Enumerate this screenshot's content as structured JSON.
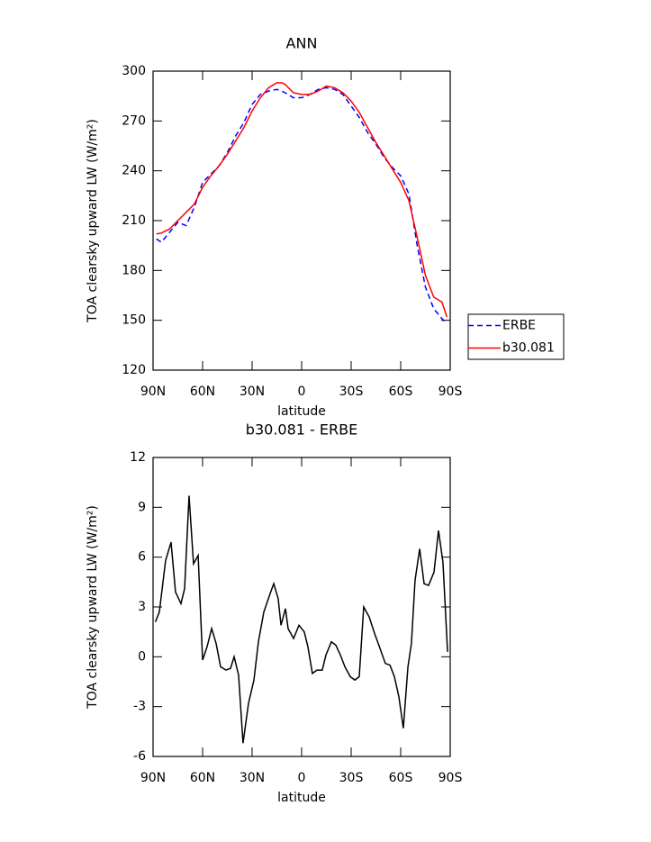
{
  "chart_data": [
    {
      "type": "line",
      "title": "ANN",
      "x_label": "latitude",
      "y_label": "TOA clearsky upward LW (W/m²)",
      "x": [
        88,
        85,
        80,
        75,
        70,
        65,
        60,
        55,
        50,
        45,
        40,
        35,
        30,
        25,
        20,
        15,
        12,
        10,
        5,
        0,
        -5,
        -10,
        -15,
        -20,
        -25,
        -30,
        -35,
        -40,
        -45,
        -50,
        -55,
        -60,
        -65,
        -70,
        -75,
        -80,
        -85,
        -88
      ],
      "series": [
        {
          "name": "ERBE",
          "color": "#0000ff",
          "dash": true,
          "values": [
            199,
            197,
            203,
            209,
            207,
            218,
            233,
            238,
            243,
            251,
            261,
            269,
            280,
            286,
            288,
            289,
            288,
            287,
            284,
            284,
            286,
            289,
            290,
            289,
            286,
            279,
            272,
            263,
            256,
            248,
            242,
            237,
            226,
            195,
            170,
            157,
            151,
            148
          ]
        },
        {
          "name": "b30.081",
          "color": "#ff0000",
          "dash": false,
          "values": [
            202,
            202.5,
            205,
            210,
            215,
            220,
            230,
            237,
            243,
            250,
            258,
            266,
            276,
            284,
            290,
            293,
            293,
            292,
            287,
            286,
            286,
            288,
            291,
            290,
            287,
            282,
            275,
            266,
            257,
            249,
            241,
            233,
            222,
            200,
            177,
            164,
            161,
            152
          ]
        }
      ],
      "xlim": [
        90,
        -90
      ],
      "xticks": [
        {
          "value": 90,
          "label": "90N"
        },
        {
          "value": 60,
          "label": "60N"
        },
        {
          "value": 30,
          "label": "30N"
        },
        0,
        {
          "value": -30,
          "label": "30S"
        },
        {
          "value": -60,
          "label": "60S"
        },
        {
          "value": -90,
          "label": "90S"
        }
      ],
      "ylim": [
        120,
        300
      ],
      "yticks": [
        120,
        150,
        180,
        210,
        240,
        270,
        300
      ],
      "legend": "right"
    },
    {
      "type": "line",
      "title": "b30.081 - ERBE",
      "x_label": "latitude",
      "y_label": "TOA clearsky upward LW (W/m²)",
      "x": [
        88.6,
        86.2,
        82.4,
        79.1,
        76.4,
        73.1,
        70.9,
        68.2,
        65.5,
        62.7,
        60.0,
        57.3,
        54.5,
        51.8,
        49.1,
        45.8,
        43.1,
        40.9,
        38.2,
        35.5,
        32.2,
        28.9,
        26.2,
        22.9,
        19.1,
        16.9,
        14.2,
        12.5,
        9.8,
        8.2,
        4.9,
        1.6,
        -1.6,
        -3.8,
        -6.5,
        -9.3,
        -12.5,
        -14.7,
        -18.0,
        -20.7,
        -23.5,
        -26.2,
        -29.5,
        -32.2,
        -34.9,
        -37.6,
        -40.9,
        -44.2,
        -47.5,
        -50.7,
        -53.5,
        -56.2,
        -58.9,
        -61.6,
        -64.4,
        -66.5,
        -68.7,
        -71.5,
        -74.2,
        -76.9,
        -80.2,
        -82.9,
        -85.6,
        -88.4
      ],
      "series": [
        {
          "name": "b30.081 - ERBE",
          "color": "#000000",
          "dash": false,
          "values": [
            2.1,
            2.7,
            5.8,
            6.9,
            3.9,
            3.2,
            4.1,
            9.7,
            5.6,
            6.1,
            -0.2,
            0.6,
            1.7,
            0.8,
            -0.6,
            -0.8,
            -0.7,
            0.0,
            -1.1,
            -5.2,
            -2.8,
            -1.4,
            0.9,
            2.7,
            3.8,
            4.4,
            3.5,
            1.9,
            2.9,
            1.7,
            1.1,
            1.9,
            1.5,
            0.6,
            -1.0,
            -0.8,
            -0.8,
            0.1,
            0.9,
            0.7,
            0.1,
            -0.6,
            -1.2,
            -1.4,
            -1.2,
            3.0,
            2.4,
            1.4,
            0.5,
            -0.4,
            -0.5,
            -1.2,
            -2.4,
            -4.3,
            -0.6,
            0.8,
            4.6,
            6.5,
            4.4,
            4.3,
            5.1,
            7.6,
            5.7,
            0.3
          ]
        }
      ],
      "xlim": [
        90,
        -90
      ],
      "xticks": [
        {
          "value": 90,
          "label": "90N"
        },
        {
          "value": 60,
          "label": "60N"
        },
        {
          "value": 30,
          "label": "30N"
        },
        0,
        {
          "value": -30,
          "label": "30S"
        },
        {
          "value": -60,
          "label": "60S"
        },
        {
          "value": -90,
          "label": "90S"
        }
      ],
      "ylim": [
        -6,
        12
      ],
      "yticks": [
        -6,
        -3,
        0,
        3,
        6,
        9,
        12
      ]
    }
  ]
}
